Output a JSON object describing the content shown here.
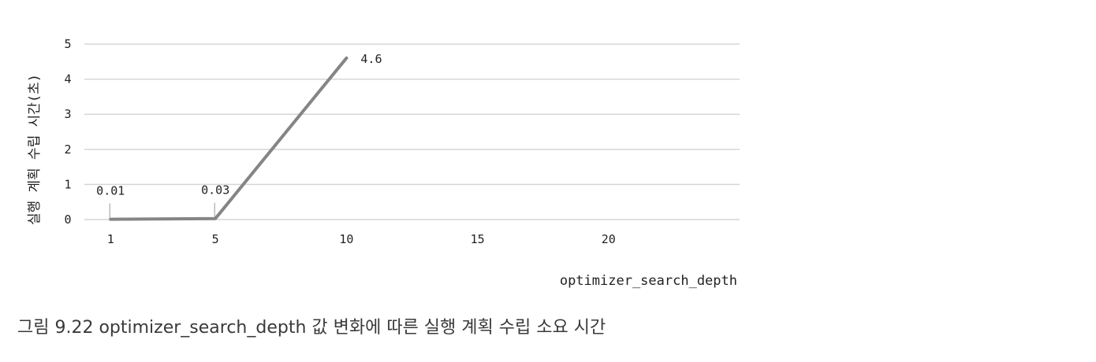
{
  "chart_data": {
    "type": "line",
    "x": [
      1,
      5,
      10
    ],
    "series": [
      {
        "values": [
          0.01,
          0.03,
          4.6
        ]
      }
    ],
    "data_labels": [
      "0.01",
      "0.03",
      "4.6"
    ],
    "xticks": [
      1,
      5,
      10,
      15,
      20
    ],
    "yticks": [
      0,
      1,
      2,
      3,
      4,
      5
    ],
    "xlim": [
      0,
      25
    ],
    "ylim": [
      0,
      5
    ],
    "xlabel": "optimizer_search_depth",
    "ylabel": "실행 계획 수립 시간(초)",
    "grid": "horizontal",
    "legend": "none",
    "colors": {
      "line": "#858585",
      "grid": "#d6d6d6",
      "text": "#222222"
    }
  },
  "caption": "그림 9.22 optimizer_search_depth 값 변화에 따른 실행 계획 수립 소요 시간"
}
